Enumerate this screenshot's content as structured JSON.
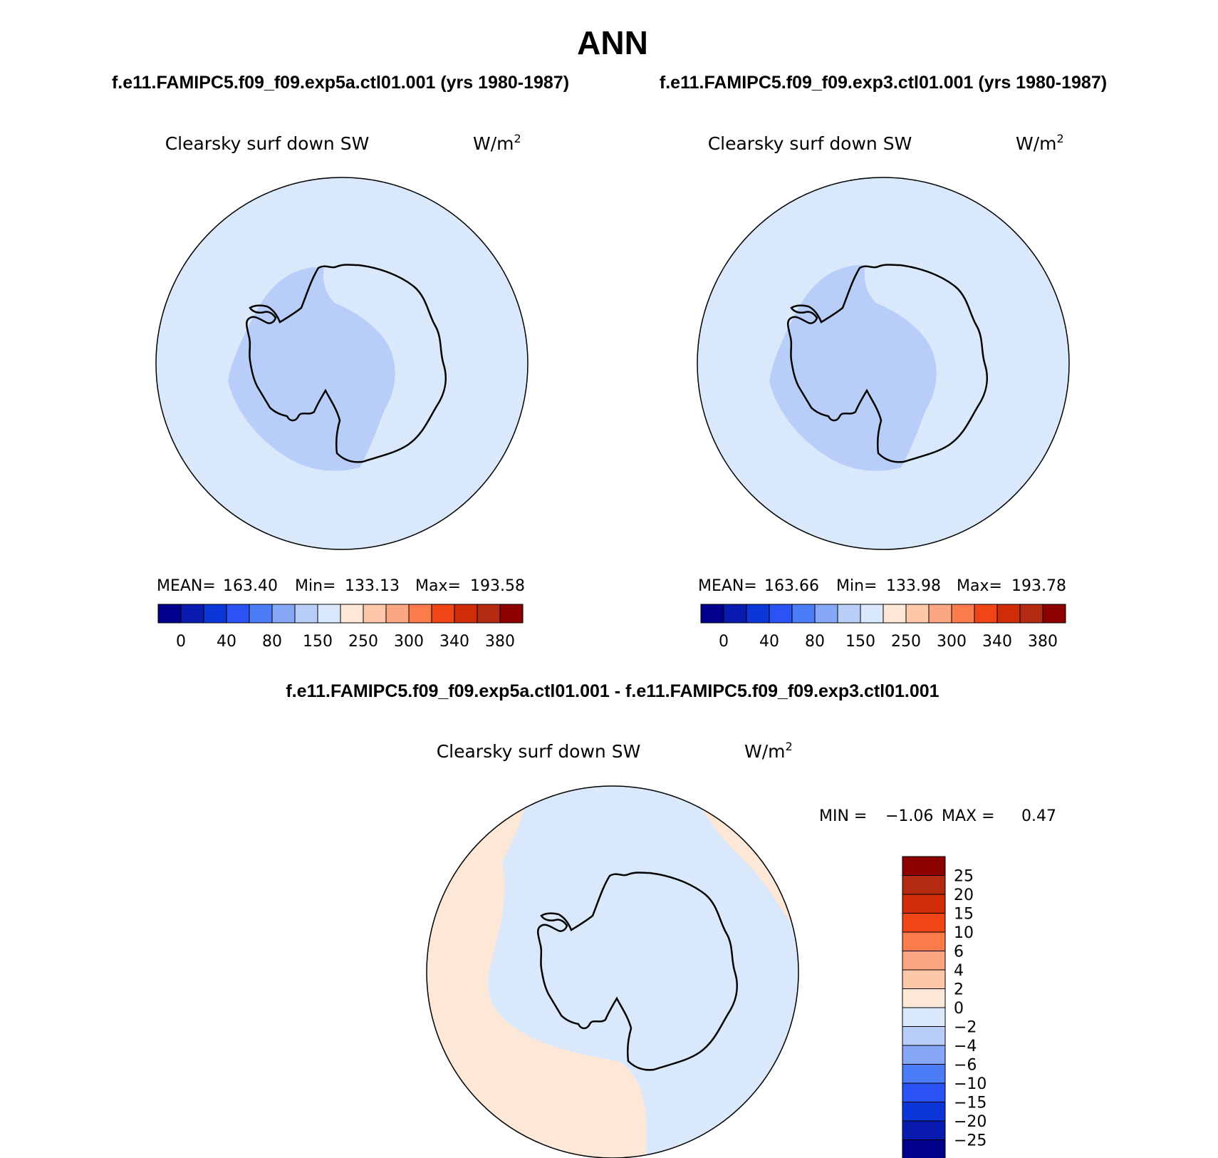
{
  "header": {
    "title": "ANN",
    "case_a": "f.e11.FAMIPC5.f09_f09.exp5a.ctl01.001 (yrs 1980-1987)",
    "case_b": "f.e11.FAMIPC5.f09_f09.exp3.ctl01.001 (yrs 1980-1987)",
    "diff_title": "f.e11.FAMIPC5.f09_f09.exp5a.ctl01.001 - f.e11.FAMIPC5.f09_f09.exp3.ctl01.001"
  },
  "colors": {
    "field_palette": [
      "#00008c",
      "#0a1bb0",
      "#0d36d8",
      "#2a52f5",
      "#4d7cf8",
      "#86a6f7",
      "#b8cef9",
      "#d9e9fb",
      "#fde8d8",
      "#fdc7a9",
      "#fca683",
      "#fc7b4b",
      "#f04516",
      "#d02c07",
      "#b32a10",
      "#8c0000"
    ],
    "diff_palette": [
      "#00008c",
      "#0a1bb0",
      "#0d36d8",
      "#2a52f5",
      "#4d7cf8",
      "#86a6f7",
      "#b8cef9",
      "#d9e9fb",
      "#fde8d8",
      "#fdc7a9",
      "#fca683",
      "#fc7b4b",
      "#f04516",
      "#d02c07",
      "#b32a10",
      "#8c0000"
    ],
    "ocean_fill": "#d9e9fb",
    "interior_fill": "#b8cef9",
    "positive_fill": "#fde8d8"
  },
  "chart_data": [
    {
      "type": "heatmap",
      "projection": "south-polar-stereographic",
      "panel": "case_a",
      "variable": "Clearsky surf down SW",
      "units_base": "W/m",
      "units_exp": "2",
      "stats": {
        "mean_label": "MEAN=",
        "mean": "163.40",
        "min_label": "Min=",
        "min": "133.13",
        "max_label": "Max=",
        "max": "193.58"
      },
      "colorbar": {
        "orientation": "horizontal",
        "tick_labels": [
          "0",
          "40",
          "80",
          "150",
          "250",
          "300",
          "340",
          "380"
        ]
      }
    },
    {
      "type": "heatmap",
      "projection": "south-polar-stereographic",
      "panel": "case_b",
      "variable": "Clearsky surf down SW",
      "units_base": "W/m",
      "units_exp": "2",
      "stats": {
        "mean_label": "MEAN=",
        "mean": "163.66",
        "min_label": "Min=",
        "min": "133.98",
        "max_label": "Max=",
        "max": "193.78"
      },
      "colorbar": {
        "orientation": "horizontal",
        "tick_labels": [
          "0",
          "40",
          "80",
          "150",
          "250",
          "300",
          "340",
          "380"
        ]
      }
    },
    {
      "type": "heatmap",
      "projection": "south-polar-stereographic",
      "panel": "difference",
      "variable": "Clearsky surf down SW",
      "units_base": "W/m",
      "units_exp": "2",
      "stats": {
        "min_label": "MIN =",
        "min": "−1.06",
        "max_label": "MAX =",
        "max": "0.47"
      },
      "colorbar": {
        "orientation": "vertical",
        "tick_labels": [
          "25",
          "20",
          "15",
          "10",
          "6",
          "4",
          "2",
          "0",
          "−2",
          "−4",
          "−6",
          "−10",
          "−15",
          "−20",
          "−25"
        ]
      }
    }
  ]
}
